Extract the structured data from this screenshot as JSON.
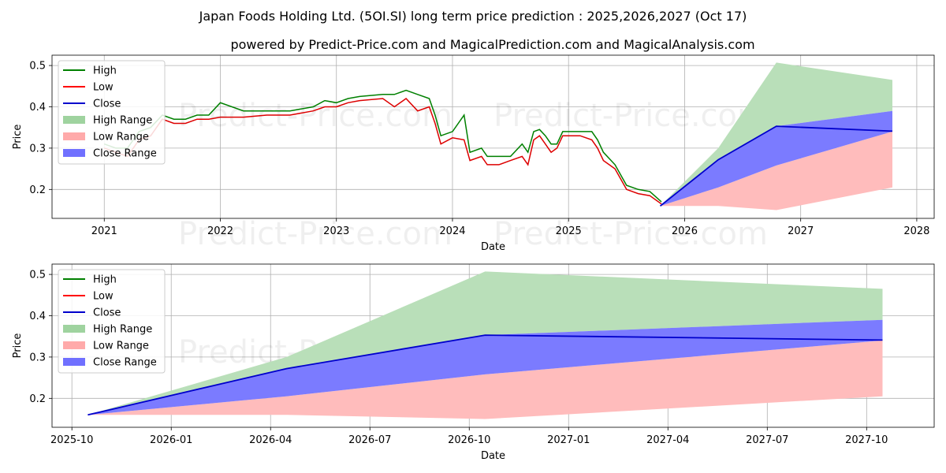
{
  "title_line1": "Japan Foods Holding Ltd. (5OI.SI) long term price prediction : 2025,2026,2027 (Oct 17)",
  "title_line2": "powered by Predict-Price.com and MagicalPrediction.com and MagicalAnalysis.com",
  "watermark": "Predict-Price.com",
  "legend": [
    {
      "label": "High",
      "color": "#008000",
      "kind": "line"
    },
    {
      "label": "Low",
      "color": "#ff0000",
      "kind": "line"
    },
    {
      "label": "Close",
      "color": "#0000cc",
      "kind": "line"
    },
    {
      "label": "High Range",
      "color": "#9fd39f",
      "kind": "patch"
    },
    {
      "label": "Low Range",
      "color": "#ffaaaa",
      "kind": "patch"
    },
    {
      "label": "Close Range",
      "color": "#7070ff",
      "kind": "patch"
    }
  ],
  "chart_data": [
    {
      "type": "line",
      "name": "top",
      "xlabel": "Date",
      "ylabel": "Price",
      "xlim": [
        2020.55,
        2028.15
      ],
      "ylim": [
        0.13,
        0.525
      ],
      "xticks": [
        2021,
        2022,
        2023,
        2024,
        2025,
        2026,
        2027,
        2028
      ],
      "xtick_labels": [
        "2021",
        "2022",
        "2023",
        "2024",
        "2025",
        "2026",
        "2027",
        "2028"
      ],
      "yticks": [
        0.2,
        0.3,
        0.4,
        0.5
      ],
      "ytick_labels": [
        "0.2",
        "0.3",
        "0.4",
        "0.5"
      ],
      "history_low": [
        [
          2021.0,
          0.3
        ],
        [
          2021.1,
          0.29
        ],
        [
          2021.2,
          0.28
        ],
        [
          2021.3,
          0.32
        ],
        [
          2021.4,
          0.33
        ],
        [
          2021.5,
          0.37
        ],
        [
          2021.6,
          0.36
        ],
        [
          2021.7,
          0.36
        ],
        [
          2021.8,
          0.37
        ],
        [
          2021.9,
          0.37
        ],
        [
          2022.0,
          0.375
        ],
        [
          2022.2,
          0.375
        ],
        [
          2022.4,
          0.38
        ],
        [
          2022.6,
          0.38
        ],
        [
          2022.8,
          0.39
        ],
        [
          2022.9,
          0.4
        ],
        [
          2023.0,
          0.4
        ],
        [
          2023.1,
          0.41
        ],
        [
          2023.2,
          0.415
        ],
        [
          2023.4,
          0.42
        ],
        [
          2023.5,
          0.4
        ],
        [
          2023.6,
          0.42
        ],
        [
          2023.7,
          0.39
        ],
        [
          2023.8,
          0.4
        ],
        [
          2023.85,
          0.36
        ],
        [
          2023.9,
          0.31
        ],
        [
          2024.0,
          0.325
        ],
        [
          2024.1,
          0.32
        ],
        [
          2024.15,
          0.27
        ],
        [
          2024.25,
          0.28
        ],
        [
          2024.3,
          0.26
        ],
        [
          2024.4,
          0.26
        ],
        [
          2024.5,
          0.27
        ],
        [
          2024.6,
          0.28
        ],
        [
          2024.65,
          0.26
        ],
        [
          2024.7,
          0.32
        ],
        [
          2024.75,
          0.33
        ],
        [
          2024.8,
          0.31
        ],
        [
          2024.85,
          0.29
        ],
        [
          2024.9,
          0.3
        ],
        [
          2024.95,
          0.33
        ],
        [
          2025.1,
          0.33
        ],
        [
          2025.2,
          0.32
        ],
        [
          2025.25,
          0.3
        ],
        [
          2025.3,
          0.27
        ],
        [
          2025.4,
          0.25
        ],
        [
          2025.5,
          0.2
        ],
        [
          2025.6,
          0.19
        ],
        [
          2025.7,
          0.185
        ],
        [
          2025.8,
          0.165
        ]
      ],
      "history_high": [
        [
          2021.0,
          0.31
        ],
        [
          2021.1,
          0.3
        ],
        [
          2021.2,
          0.3
        ],
        [
          2021.3,
          0.34
        ],
        [
          2021.4,
          0.35
        ],
        [
          2021.5,
          0.38
        ],
        [
          2021.6,
          0.37
        ],
        [
          2021.7,
          0.37
        ],
        [
          2021.8,
          0.38
        ],
        [
          2021.9,
          0.38
        ],
        [
          2022.0,
          0.41
        ],
        [
          2022.2,
          0.39
        ],
        [
          2022.4,
          0.39
        ],
        [
          2022.6,
          0.39
        ],
        [
          2022.8,
          0.4
        ],
        [
          2022.9,
          0.415
        ],
        [
          2023.0,
          0.41
        ],
        [
          2023.1,
          0.42
        ],
        [
          2023.2,
          0.425
        ],
        [
          2023.4,
          0.43
        ],
        [
          2023.5,
          0.43
        ],
        [
          2023.6,
          0.44
        ],
        [
          2023.7,
          0.43
        ],
        [
          2023.8,
          0.42
        ],
        [
          2023.85,
          0.38
        ],
        [
          2023.9,
          0.33
        ],
        [
          2024.0,
          0.34
        ],
        [
          2024.1,
          0.38
        ],
        [
          2024.15,
          0.29
        ],
        [
          2024.25,
          0.3
        ],
        [
          2024.3,
          0.28
        ],
        [
          2024.4,
          0.28
        ],
        [
          2024.5,
          0.28
        ],
        [
          2024.6,
          0.31
        ],
        [
          2024.65,
          0.29
        ],
        [
          2024.7,
          0.34
        ],
        [
          2024.75,
          0.345
        ],
        [
          2024.8,
          0.33
        ],
        [
          2024.85,
          0.31
        ],
        [
          2024.9,
          0.31
        ],
        [
          2024.95,
          0.34
        ],
        [
          2025.1,
          0.34
        ],
        [
          2025.2,
          0.34
        ],
        [
          2025.25,
          0.32
        ],
        [
          2025.3,
          0.29
        ],
        [
          2025.4,
          0.26
        ],
        [
          2025.5,
          0.21
        ],
        [
          2025.6,
          0.2
        ],
        [
          2025.7,
          0.195
        ],
        [
          2025.8,
          0.17
        ]
      ],
      "forecast_x": [
        2025.79,
        2026.29,
        2026.79,
        2027.79
      ],
      "close_line": [
        0.16,
        0.272,
        0.353,
        0.341
      ],
      "high_range_top": [
        0.16,
        0.3,
        0.507,
        0.465
      ],
      "close_range_top": [
        0.16,
        0.272,
        0.353,
        0.39
      ],
      "close_range_bottom": [
        0.16,
        0.205,
        0.258,
        0.34
      ],
      "low_range_top": [
        0.16,
        0.205,
        0.258,
        0.34
      ],
      "low_range_bottom": [
        0.16,
        0.16,
        0.15,
        0.205
      ]
    },
    {
      "type": "line",
      "name": "bottom",
      "xlabel": "Date",
      "ylabel": "Price",
      "xlim": [
        2025.7,
        2027.92
      ],
      "ylim": [
        0.13,
        0.525
      ],
      "xticks": [
        2025.75,
        2026.0,
        2026.25,
        2026.5,
        2026.75,
        2027.0,
        2027.25,
        2027.5,
        2027.75
      ],
      "xtick_labels": [
        "2025-10",
        "2026-01",
        "2026-04",
        "2026-07",
        "2026-10",
        "2027-01",
        "2027-04",
        "2027-07",
        "2027-10"
      ],
      "yticks": [
        0.2,
        0.3,
        0.4,
        0.5
      ],
      "ytick_labels": [
        "0.2",
        "0.3",
        "0.4",
        "0.5"
      ],
      "forecast_x": [
        2025.79,
        2026.29,
        2026.79,
        2027.79
      ],
      "close_line": [
        0.16,
        0.272,
        0.353,
        0.341
      ],
      "high_range_top": [
        0.16,
        0.3,
        0.507,
        0.465
      ],
      "close_range_top": [
        0.16,
        0.272,
        0.353,
        0.39
      ],
      "close_range_bottom": [
        0.16,
        0.205,
        0.258,
        0.34
      ],
      "low_range_top": [
        0.16,
        0.205,
        0.258,
        0.34
      ],
      "low_range_bottom": [
        0.16,
        0.16,
        0.15,
        0.205
      ]
    }
  ]
}
